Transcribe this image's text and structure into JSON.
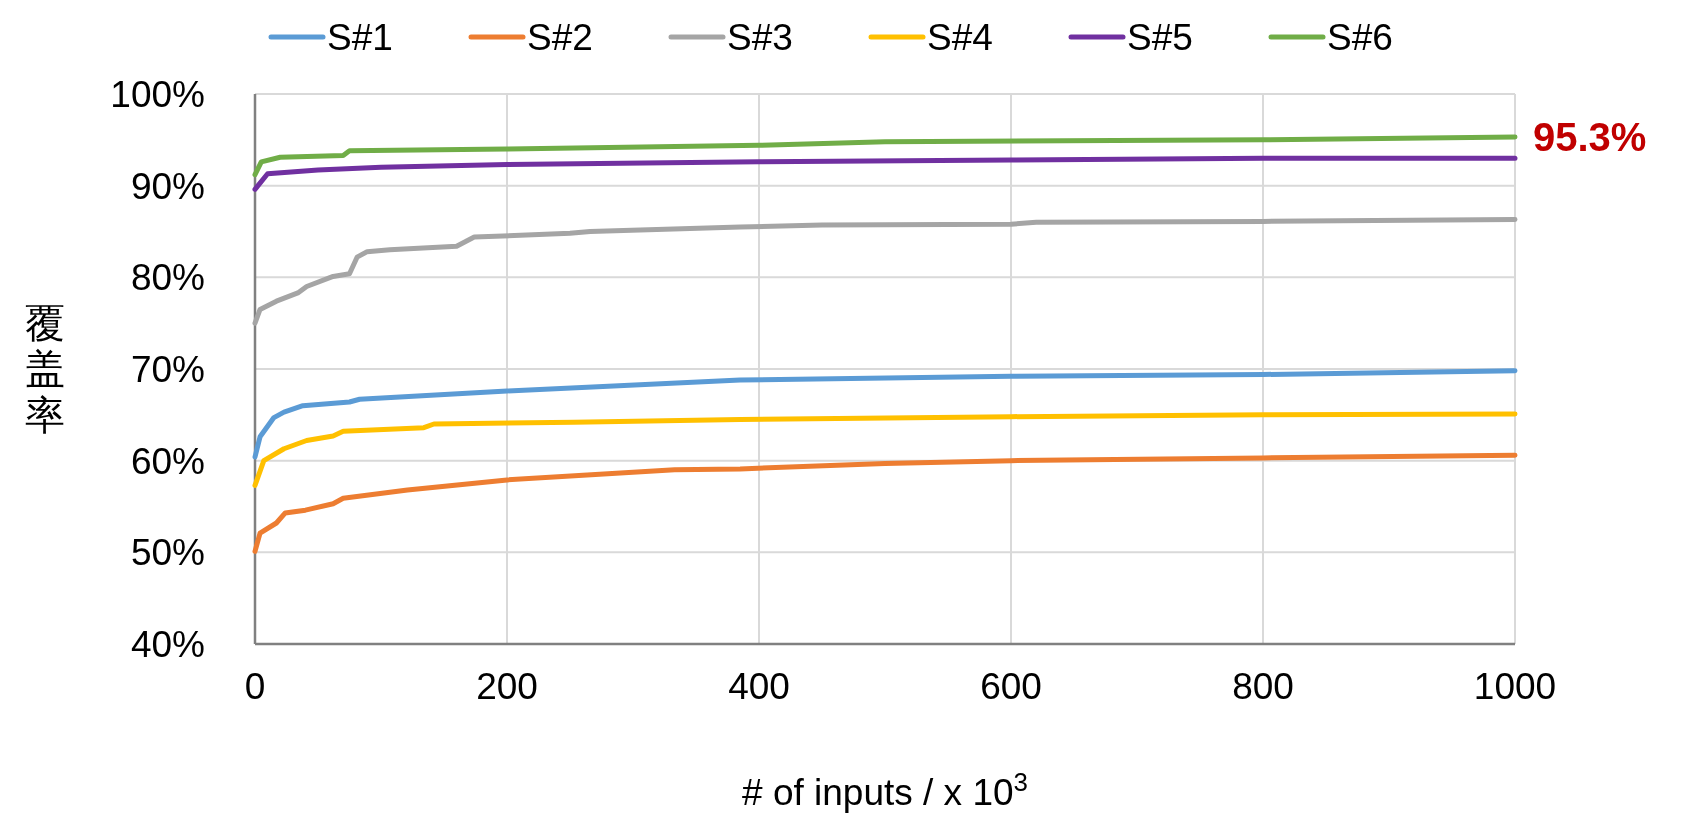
{
  "chart_data": {
    "type": "line",
    "xlabel": "# of inputs / x 10$^{3}$",
    "ylabel": "覆盖率",
    "xlim": [
      0,
      1000
    ],
    "xticks": [
      0,
      200,
      400,
      600,
      800,
      1000
    ],
    "ylim": [
      40,
      100
    ],
    "yticks": [
      {
        "value": 40,
        "label": "40%"
      },
      {
        "value": 50,
        "label": "50%"
      },
      {
        "value": 60,
        "label": "60%"
      },
      {
        "value": 70,
        "label": "70%"
      },
      {
        "value": 80,
        "label": "80%"
      },
      {
        "value": 90,
        "label": "90%"
      },
      {
        "value": 100,
        "label": "100%"
      }
    ],
    "grid": true,
    "legend": "top",
    "marker": "none",
    "line_style": "solid",
    "annotations": [
      {
        "text": "95.3%",
        "x": 1000,
        "y": 95.3
      }
    ],
    "series": [
      {
        "name": "S#1",
        "color": "#5b9bd5",
        "x": [
          0,
          4,
          15,
          23,
          38,
          75,
          83,
          200,
          385,
          600,
          800,
          1000
        ],
        "values": [
          60.4,
          62.6,
          64.7,
          65.3,
          66.0,
          66.4,
          66.7,
          67.6,
          68.8,
          69.2,
          69.4,
          69.8
        ]
      },
      {
        "name": "S#2",
        "color": "#ed7d31",
        "x": [
          0,
          4,
          17,
          24,
          40,
          62,
          70,
          121,
          200,
          333,
          385,
          500,
          600,
          800,
          1000
        ],
        "values": [
          50.1,
          52.1,
          53.2,
          54.3,
          54.6,
          55.3,
          55.9,
          56.8,
          57.9,
          59.0,
          59.1,
          59.7,
          60.0,
          60.3,
          60.6
        ]
      },
      {
        "name": "S#3",
        "color": "#a5a5a5",
        "x": [
          0,
          4,
          17,
          34,
          41,
          62,
          75,
          81,
          89,
          107,
          160,
          174,
          250,
          266,
          385,
          450,
          600,
          620,
          800,
          1000
        ],
        "values": [
          75.0,
          76.5,
          77.4,
          78.3,
          79.0,
          80.1,
          80.4,
          82.2,
          82.8,
          83.0,
          83.4,
          84.4,
          84.8,
          85.0,
          85.5,
          85.7,
          85.8,
          86.0,
          86.1,
          86.3
        ]
      },
      {
        "name": "S#4",
        "color": "#ffc000",
        "x": [
          0,
          7,
          23,
          41,
          62,
          70,
          134,
          142,
          253,
          385,
          600,
          800,
          1000
        ],
        "values": [
          57.3,
          60.0,
          61.3,
          62.2,
          62.7,
          63.2,
          63.6,
          64.0,
          64.2,
          64.5,
          64.8,
          65.0,
          65.1
        ]
      },
      {
        "name": "S#5",
        "color": "#7030a0",
        "x": [
          0,
          10,
          50,
          100,
          200,
          400,
          600,
          800,
          1000
        ],
        "values": [
          89.6,
          91.3,
          91.7,
          92.0,
          92.3,
          92.6,
          92.8,
          93.0,
          93.0
        ]
      },
      {
        "name": "S#6",
        "color": "#70ad47",
        "x": [
          0,
          5,
          20,
          70,
          75,
          200,
          400,
          500,
          800,
          1000
        ],
        "values": [
          91.2,
          92.6,
          93.1,
          93.3,
          93.8,
          94.0,
          94.4,
          94.8,
          95.0,
          95.3
        ]
      }
    ]
  }
}
